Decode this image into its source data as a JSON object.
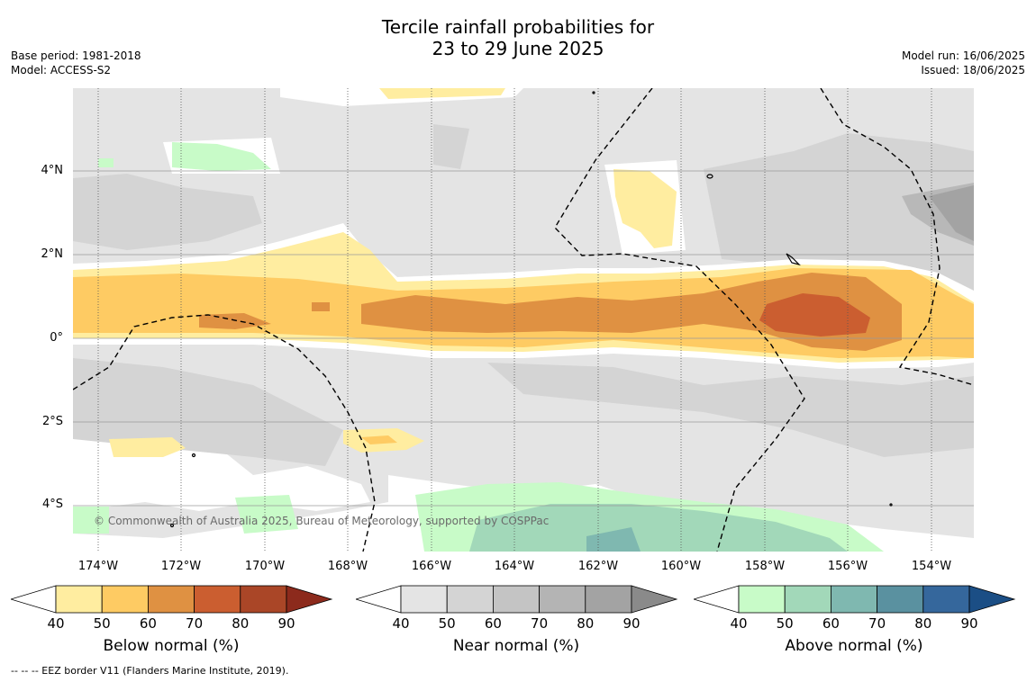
{
  "title_line1": "Tercile rainfall probabilities for",
  "title_line2": "23 to 29 June 2025",
  "base_period": "Base period: 1981-2018",
  "model": "Model: ACCESS-S2",
  "model_run": "Model run: 16/06/2025",
  "issued": "Issued: 18/06/2025",
  "copyright": "© Commonwealth of Australia 2025, Bureau of Meteorology, supported by COSPPac",
  "footnote": "--  --  -- EEZ border V11 (Flanders Marine Institute, 2019).",
  "lat_ticks": [
    "4°N",
    "2°N",
    "0°",
    "2°S",
    "4°S"
  ],
  "lon_ticks": [
    "174°W",
    "172°W",
    "170°W",
    "168°W",
    "166°W",
    "164°W",
    "162°W",
    "160°W",
    "158°W",
    "156°W",
    "154°W"
  ],
  "colorbars": [
    {
      "title": "Below normal (%)",
      "ticks": [
        "40",
        "50",
        "60",
        "70",
        "80",
        "90"
      ],
      "colors": [
        "#ffeda0",
        "#fecb63",
        "#df9142",
        "#cb5e30",
        "#aa4627",
        "#8c2a1c"
      ]
    },
    {
      "title": "Near normal (%)",
      "ticks": [
        "40",
        "50",
        "60",
        "70",
        "80",
        "90"
      ],
      "colors": [
        "#e4e4e4",
        "#d4d4d4",
        "#c4c4c4",
        "#b4b4b4",
        "#a3a3a3",
        "#8a8a8a"
      ]
    },
    {
      "title": "Above normal (%)",
      "ticks": [
        "40",
        "50",
        "60",
        "70",
        "80",
        "90"
      ],
      "colors": [
        "#c8fbc8",
        "#a2d8b9",
        "#7fb8b0",
        "#5a91a0",
        "#35679c",
        "#1b4e85"
      ]
    }
  ],
  "colors": {
    "land_border": "#000000",
    "grid": "#9a9a9a",
    "background": "#e4e4e4"
  }
}
